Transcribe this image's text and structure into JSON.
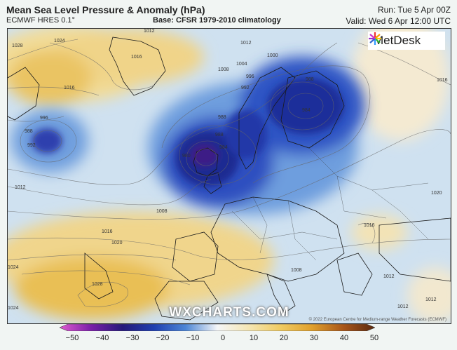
{
  "header": {
    "title": "Mean Sea Level Pressure & Anomaly (hPa)",
    "model": "ECMWF HRES 0.1°",
    "base": "Base: CFSR 1979-2010 climatology",
    "run": "Run: Tue 5 Apr 00Z",
    "valid": "Valid: Wed 6 Apr 12:00 UTC"
  },
  "logo": {
    "text": "MetDesk"
  },
  "watermark": "WXCHARTS.COM",
  "copyright": "© 2022 European Centre for Medium-range Weather Forecasts (ECMWF)",
  "colorbar": {
    "ticks": [
      "−50",
      "−40",
      "−30",
      "−20",
      "−10",
      "0",
      "10",
      "20",
      "30",
      "40",
      "50"
    ],
    "colors": [
      "#e05ad0",
      "#7a1fa8",
      "#25197a",
      "#1f3fb0",
      "#4d86d6",
      "#bfdaf0",
      "#f4f0e0",
      "#f3d98a",
      "#e9b33c",
      "#c8741c",
      "#7a3a12"
    ]
  },
  "isobars": {
    "labels": [
      "1028",
      "1024",
      "1016",
      "1012",
      "1016",
      "1012",
      "1008",
      "1004",
      "1000",
      "996",
      "992",
      "988",
      "984",
      "996",
      "988",
      "992",
      "988",
      "984",
      "980",
      "988",
      "1012",
      "1016",
      "1020",
      "1028",
      "1024",
      "1024",
      "1016",
      "1008",
      "1008",
      "1012",
      "1012",
      "1016",
      "1012",
      "1020"
    ]
  }
}
